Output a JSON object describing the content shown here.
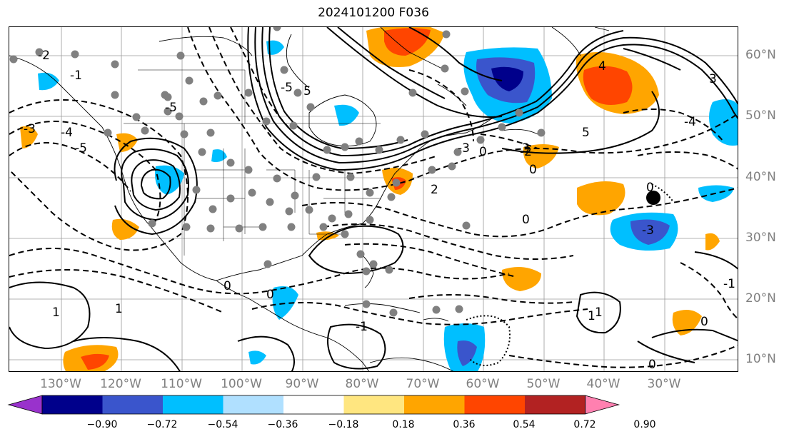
{
  "title": "2024101200 F036",
  "lon_labels": [
    "130°W",
    "120°W",
    "110°W",
    "100°W",
    "90°W",
    "80°W",
    "70°W",
    "60°W",
    "50°W",
    "40°W",
    "30°W"
  ],
  "lat_labels": [
    "60°N",
    "50°N",
    "40°N",
    "30°N",
    "20°N",
    "10°N"
  ],
  "colorbar": {
    "ticks": [
      "−0.90",
      "−0.72",
      "−0.54",
      "−0.36",
      "−0.18",
      "0.18",
      "0.36",
      "0.54",
      "0.72",
      "0.90"
    ],
    "colors": [
      "#9932cc",
      "#00008b",
      "#3a55cc",
      "#00bfff",
      "#b0e0ff",
      "#ffffff",
      "#ffe680",
      "#ffa500",
      "#ff4500",
      "#b22222",
      "#ff80b0"
    ]
  },
  "contour_labels": [
    "-5",
    "-5",
    "-5",
    "-4",
    "-4",
    "-3",
    "-3",
    "-2",
    "-2",
    "-1",
    "-1",
    "-1",
    "0",
    "0",
    "0",
    "0",
    "0",
    "0",
    "0",
    "1",
    "1",
    "1",
    "2",
    "3",
    "3",
    "4",
    "5",
    "5",
    "-3",
    "1",
    "0"
  ],
  "colors": {
    "neg_strong": "#3a55cc",
    "neg_mid": "#00bfff",
    "neg_weak": "#b0e0ff",
    "pos_weak": "#ffe680",
    "pos_mid": "#ffa500",
    "pos_strong": "#ff4500",
    "station": "#808080"
  }
}
